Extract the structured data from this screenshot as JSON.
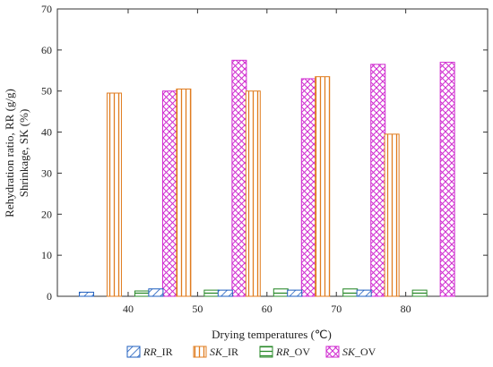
{
  "chart_data": {
    "type": "bar",
    "categories": [
      "40",
      "50",
      "60",
      "70",
      "80"
    ],
    "xlabel": "Drying temperatures (℃)",
    "ylabel_line1": "Rehydration ratio, RR (g/g)",
    "ylabel_line2": "Shrinkage, SK (%)",
    "ylim": [
      0,
      70
    ],
    "yticks": [
      "0",
      "10",
      "20",
      "30",
      "40",
      "50",
      "60",
      "70"
    ],
    "grid": false,
    "legend_position": "bottom",
    "series": [
      {
        "name": "RR_IR",
        "name_italic": "RR",
        "name_suffix": "_IR",
        "color": "#1f5fbf",
        "pattern": "diagonal",
        "values": [
          1.0,
          1.8,
          1.5,
          1.5,
          1.5
        ]
      },
      {
        "name": "SK_IR",
        "name_italic": "SK",
        "name_suffix": "_IR",
        "color": "#e07c1f",
        "pattern": "vertical",
        "values": [
          49.5,
          50.5,
          50.0,
          53.5,
          39.5
        ]
      },
      {
        "name": "RR_OV",
        "name_italic": "RR",
        "name_suffix": "_OV",
        "color": "#2a8a2a",
        "pattern": "horizontal",
        "values": [
          1.3,
          1.5,
          1.8,
          1.8,
          1.5
        ]
      },
      {
        "name": "SK_OV",
        "name_italic": "SK",
        "name_suffix": "_OV",
        "color": "#d02bd0",
        "pattern": "crosshatch",
        "values": [
          50.0,
          57.5,
          53.0,
          56.5,
          57.0
        ]
      }
    ]
  }
}
